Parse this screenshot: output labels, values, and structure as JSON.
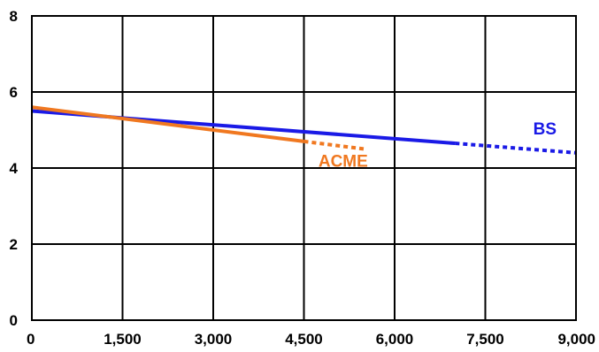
{
  "chart_data": {
    "type": "line",
    "title": "",
    "xlabel": "",
    "ylabel": "",
    "xlim": [
      0,
      9000
    ],
    "ylim": [
      0,
      8
    ],
    "x_ticks": [
      0,
      1500,
      3000,
      4500,
      6000,
      7500,
      9000
    ],
    "x_tick_labels": [
      "0",
      "1,500",
      "3,000",
      "4,500",
      "6,000",
      "7,500",
      "9,000"
    ],
    "y_ticks": [
      0,
      2,
      4,
      6,
      8
    ],
    "y_tick_labels": [
      "0",
      "2",
      "4",
      "6",
      "8"
    ],
    "grid": true,
    "legend": "none",
    "series": [
      {
        "name": "BS",
        "color": "#1a1ae6",
        "solid": {
          "x": [
            0,
            7000
          ],
          "y": [
            5.5,
            4.65
          ]
        },
        "dotted": {
          "x": [
            7000,
            9000
          ],
          "y": [
            4.65,
            4.4
          ]
        }
      },
      {
        "name": "ACME",
        "color": "#f07820",
        "solid": {
          "x": [
            0,
            4500
          ],
          "y": [
            5.6,
            4.7
          ]
        },
        "dotted": {
          "x": [
            4500,
            5500
          ],
          "y": [
            4.7,
            4.5
          ]
        }
      }
    ]
  }
}
